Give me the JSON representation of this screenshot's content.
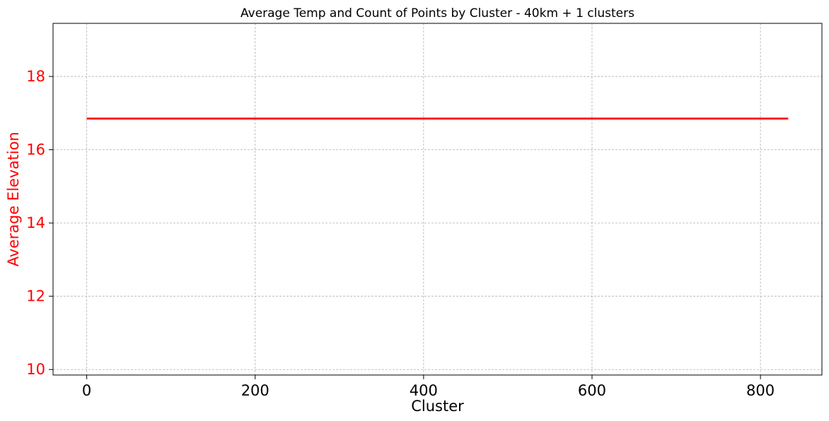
{
  "chart_data": {
    "type": "line",
    "title": "Average Temp and Count of Points by Cluster - 40km + 1 clusters",
    "xlabel": "Cluster",
    "ylabel": "Average Elevation",
    "xlim": [
      -40,
      873
    ],
    "ylim": [
      9.85,
      19.45
    ],
    "xticks": [
      0,
      200,
      400,
      600,
      800
    ],
    "yticks": [
      10,
      12,
      14,
      16,
      18
    ],
    "grid": true,
    "series": [
      {
        "color": "#ff0000",
        "x": [
          0,
          833
        ],
        "y": [
          16.85,
          16.85
        ]
      }
    ],
    "colors": {
      "series": "#ff0000",
      "y_axis_text": "#ff0000",
      "grid": "#b0b0b0"
    }
  }
}
